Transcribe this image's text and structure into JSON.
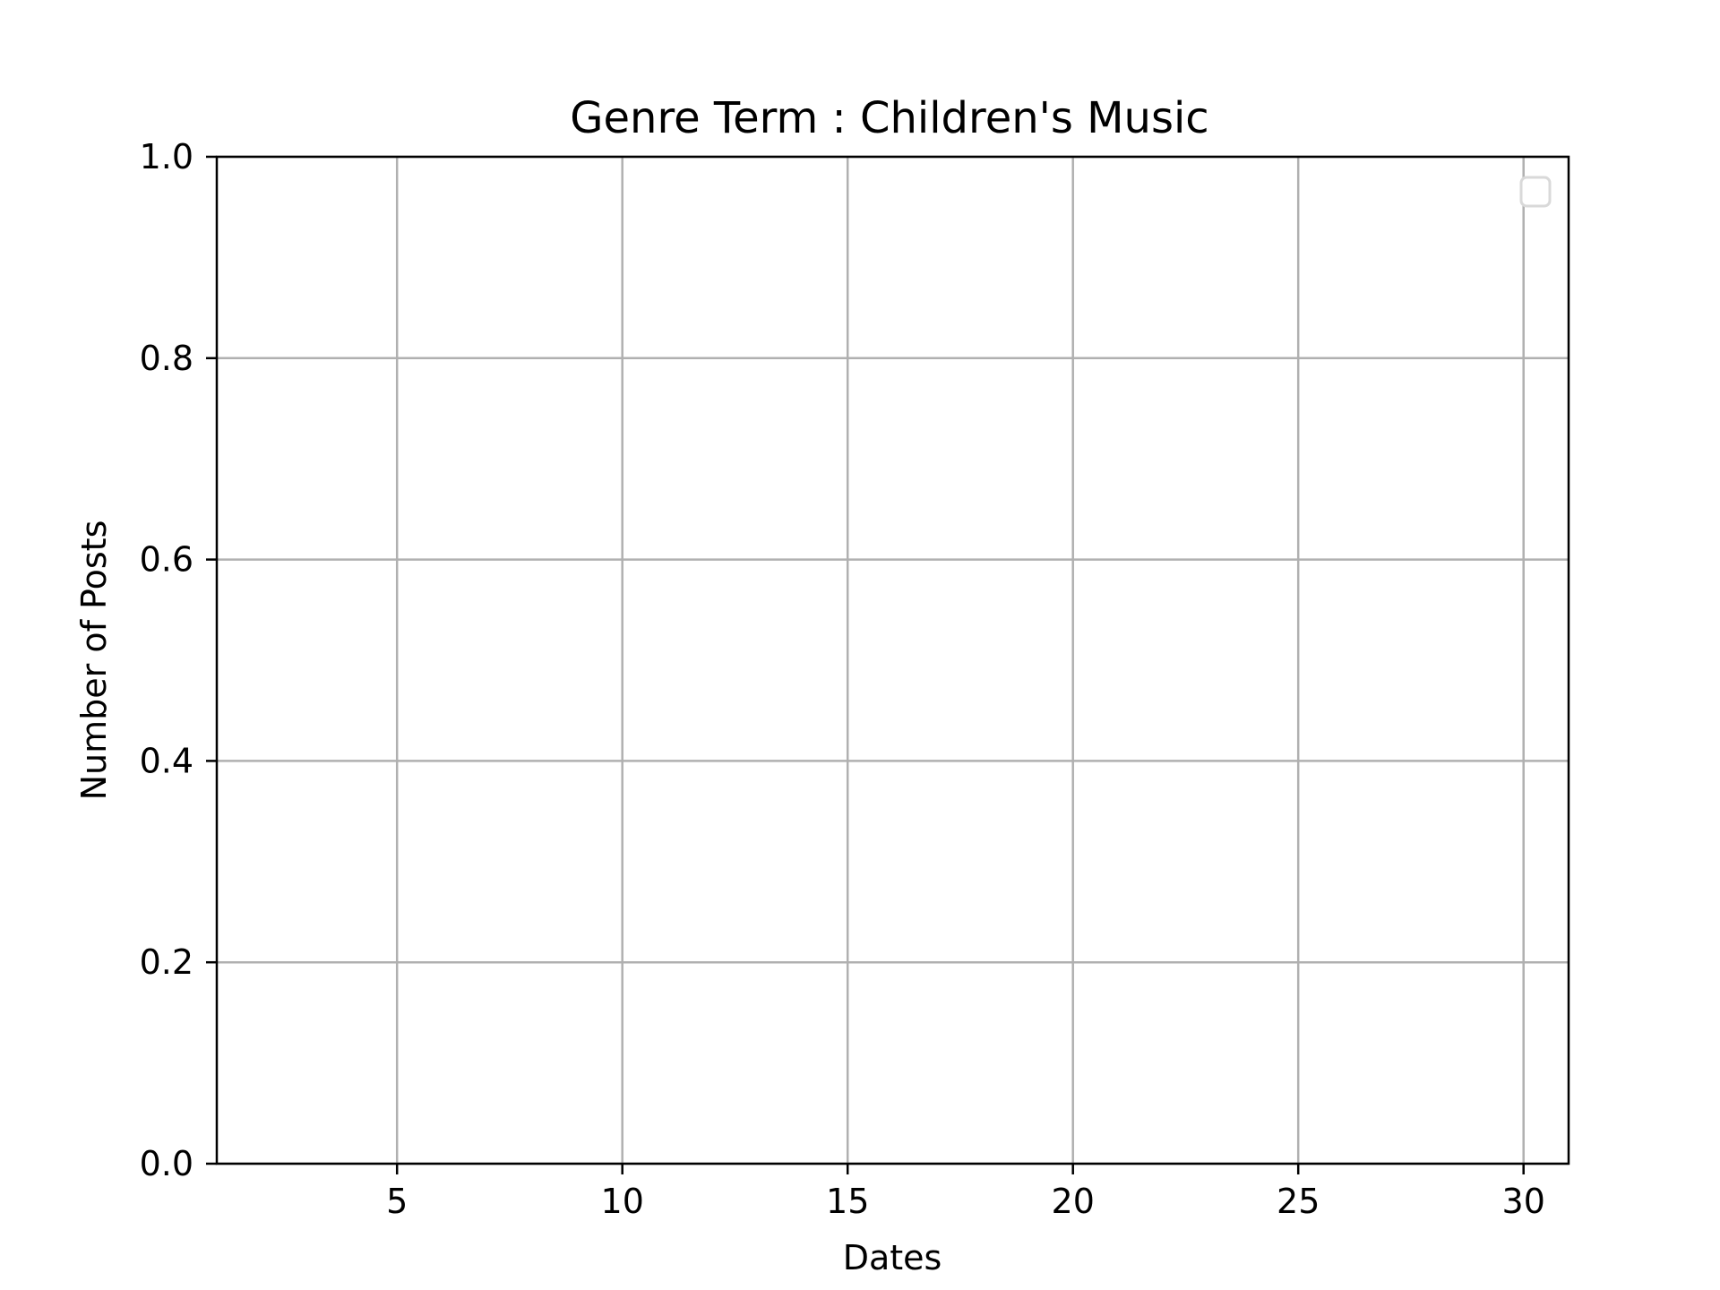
{
  "chart_data": {
    "type": "line",
    "title": "Genre Term : Children's Music",
    "xlabel": "Dates",
    "ylabel": "Number of Posts",
    "xlim": [
      1,
      31
    ],
    "ylim": [
      0,
      1
    ],
    "x_ticks": [
      5,
      10,
      15,
      20,
      25,
      30
    ],
    "x_tick_labels": [
      "5",
      "10",
      "15",
      "20",
      "25",
      "30"
    ],
    "y_ticks": [
      0.0,
      0.2,
      0.4,
      0.6,
      0.8,
      1.0
    ],
    "y_tick_labels": [
      "0.0",
      "0.2",
      "0.4",
      "0.6",
      "0.8",
      "1.0"
    ],
    "grid": true,
    "legend": {
      "placement": "upper right",
      "entries": []
    },
    "series": [],
    "colors": {
      "grid": "#b0b0b0",
      "axes": "#000000",
      "legend_border": "#d9d9d9"
    }
  }
}
